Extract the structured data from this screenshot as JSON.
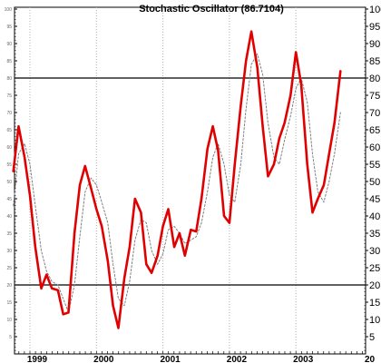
{
  "chart_data": {
    "type": "line",
    "title": "Stochastic Oscillator (86.7104)",
    "ylim": [
      0,
      100
    ],
    "yticks": [
      5,
      10,
      15,
      20,
      25,
      30,
      35,
      40,
      45,
      50,
      55,
      60,
      65,
      70,
      75,
      80,
      85,
      90,
      95,
      100
    ],
    "ytick_labels_left": [
      "5",
      "10",
      "15",
      "20",
      "25",
      "30",
      "35",
      "40",
      "45",
      "50",
      "55",
      "60",
      "65",
      "70",
      "75",
      "80",
      "85",
      "90",
      "95",
      "100"
    ],
    "ytick_labels_right": [
      "5",
      "10",
      "15",
      "20",
      "25",
      "30",
      "35",
      "40",
      "45",
      "50",
      "55",
      "60",
      "65",
      "70",
      "75",
      "80",
      "85",
      "90",
      "95",
      "100"
    ],
    "xlim": [
      1998.75,
      2004.25
    ],
    "x_labels": [
      {
        "x": 1999.0,
        "label": "1999"
      },
      {
        "x": 2000.0,
        "label": "2000"
      },
      {
        "x": 2001.0,
        "label": "2001"
      },
      {
        "x": 2002.0,
        "label": "2002"
      },
      {
        "x": 2003.0,
        "label": "2003"
      },
      {
        "x": 2004.0,
        "label": "20"
      }
    ],
    "vertical_grid_x": [
      1999.0,
      2000.0,
      2001.0,
      2002.0,
      2003.0
    ],
    "reference_lines": [
      80,
      20
    ],
    "grid": "dotted vertical at year boundaries",
    "series": [
      {
        "color": "#e00000",
        "style": "solid-thick",
        "x": [
          1998.75,
          1998.83,
          1998.92,
          1999.0,
          1999.08,
          1999.17,
          1999.25,
          1999.33,
          1999.42,
          1999.5,
          1999.58,
          1999.67,
          1999.75,
          1999.83,
          1999.92,
          2000.0,
          2000.08,
          2000.17,
          2000.25,
          2000.33,
          2000.42,
          2000.5,
          2000.58,
          2000.67,
          2000.75,
          2000.83,
          2000.92,
          2001.0,
          2001.08,
          2001.17,
          2001.25,
          2001.33,
          2001.42,
          2001.5,
          2001.58,
          2001.67,
          2001.75,
          2001.83,
          2001.92,
          2002.0,
          2002.08,
          2002.17,
          2002.25,
          2002.33,
          2002.42,
          2002.5,
          2002.58,
          2002.67,
          2002.75,
          2002.83,
          2002.92,
          2003.0,
          2003.08,
          2003.17,
          2003.25,
          2003.33,
          2003.42,
          2003.5,
          2003.58,
          2003.67
        ],
        "values": [
          53,
          66,
          57,
          46,
          31,
          19,
          23,
          19,
          18.5,
          11.5,
          12,
          35,
          49,
          54.5,
          48,
          42,
          37,
          27,
          14,
          7.5,
          22,
          31,
          45,
          41,
          26,
          23.5,
          28.5,
          37,
          42,
          31,
          35,
          28.5,
          36,
          35.5,
          45,
          59.5,
          66,
          59,
          40,
          38,
          55,
          72,
          85,
          93.5,
          83,
          66,
          51.5,
          55,
          62.5,
          67,
          75,
          87.5,
          78,
          55,
          41,
          45,
          49,
          58,
          67,
          82
        ]
      },
      {
        "color": "#808080",
        "style": "dotted",
        "x": [
          1998.75,
          1998.83,
          1998.92,
          1999.0,
          1999.08,
          1999.17,
          1999.25,
          1999.33,
          1999.42,
          1999.5,
          1999.58,
          1999.67,
          1999.75,
          1999.83,
          1999.92,
          2000.0,
          2000.08,
          2000.17,
          2000.25,
          2000.33,
          2000.42,
          2000.5,
          2000.58,
          2000.67,
          2000.75,
          2000.83,
          2000.92,
          2001.0,
          2001.08,
          2001.17,
          2001.25,
          2001.33,
          2001.42,
          2001.5,
          2001.58,
          2001.67,
          2001.75,
          2001.83,
          2001.92,
          2002.0,
          2002.08,
          2002.17,
          2002.25,
          2002.33,
          2002.42,
          2002.5,
          2002.58,
          2002.67,
          2002.75,
          2002.83,
          2002.92,
          2003.0,
          2003.08,
          2003.17,
          2003.25,
          2003.33,
          2003.42,
          2003.5,
          2003.58,
          2003.67
        ],
        "values": [
          43,
          58,
          61,
          55,
          43,
          30,
          24,
          21,
          20,
          16,
          12,
          20,
          34,
          47,
          51,
          49,
          44,
          38,
          26,
          16,
          14,
          21,
          33,
          39,
          38,
          30,
          26,
          29,
          36,
          37,
          35,
          32,
          33,
          34,
          38,
          47,
          57,
          61,
          55,
          46,
          44,
          55,
          71,
          84,
          87,
          81,
          67,
          57,
          55,
          62,
          69,
          77,
          80,
          73,
          58,
          47,
          44,
          50,
          58,
          70
        ]
      }
    ]
  }
}
